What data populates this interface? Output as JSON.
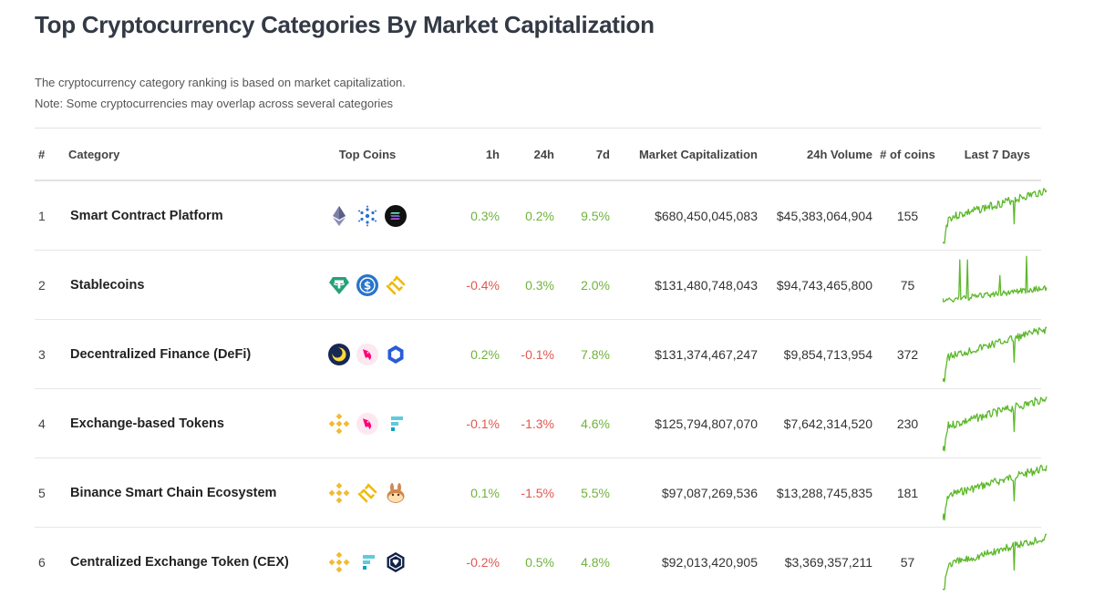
{
  "page": {
    "title": "Top Cryptocurrency Categories By Market Capitalization",
    "description_line1": "The cryptocurrency category ranking is based on market capitalization.",
    "description_line2": "Note: Some cryptocurrencies may overlap across several categories"
  },
  "table": {
    "headers": {
      "rank": "#",
      "category": "Category",
      "top_coins": "Top Coins",
      "h1": "1h",
      "h24": "24h",
      "d7": "7d",
      "market_cap": "Market Capitalization",
      "volume": "24h Volume",
      "coins": "# of coins",
      "last7": "Last 7 Days"
    },
    "rows": [
      {
        "rank": "1",
        "category": "Smart Contract Platform",
        "h1": "0.3%",
        "h24": "0.2%",
        "d7": "9.5%",
        "market_cap": "$680,450,045,083",
        "volume": "$45,383,064,904",
        "coins": "155",
        "top_coins": [
          "ethereum-icon",
          "cardano-icon",
          "solana-icon"
        ]
      },
      {
        "rank": "2",
        "category": "Stablecoins",
        "h1": "-0.4%",
        "h24": "0.3%",
        "d7": "2.0%",
        "market_cap": "$131,480,748,043",
        "volume": "$94,743,465,800",
        "coins": "75",
        "top_coins": [
          "tether-icon",
          "usd-coin-icon",
          "binance-usd-icon"
        ]
      },
      {
        "rank": "3",
        "category": "Decentralized Finance (DeFi)",
        "h1": "0.2%",
        "h24": "-0.1%",
        "d7": "7.8%",
        "market_cap": "$131,374,467,247",
        "volume": "$9,854,713,954",
        "coins": "372",
        "top_coins": [
          "terra-icon",
          "uniswap-icon",
          "chainlink-icon"
        ]
      },
      {
        "rank": "4",
        "category": "Exchange-based Tokens",
        "h1": "-0.1%",
        "h24": "-1.3%",
        "d7": "4.6%",
        "market_cap": "$125,794,807,070",
        "volume": "$7,642,314,520",
        "coins": "230",
        "top_coins": [
          "binance-coin-icon",
          "uniswap-icon",
          "ftx-token-icon"
        ]
      },
      {
        "rank": "5",
        "category": "Binance Smart Chain Ecosystem",
        "h1": "0.1%",
        "h24": "-1.5%",
        "d7": "5.5%",
        "market_cap": "$97,087,269,536",
        "volume": "$13,288,745,835",
        "coins": "181",
        "top_coins": [
          "binance-coin-icon",
          "binance-usd-icon",
          "pancakeswap-icon"
        ]
      },
      {
        "rank": "6",
        "category": "Centralized Exchange Token (CEX)",
        "h1": "-0.2%",
        "h24": "0.5%",
        "d7": "4.8%",
        "market_cap": "$92,013,420,905",
        "volume": "$3,369,357,211",
        "coins": "57",
        "top_coins": [
          "binance-coin-icon",
          "ftx-token-icon",
          "crypto-com-icon"
        ]
      }
    ]
  },
  "colors": {
    "positive": "#6fb33c",
    "negative": "#e0584f",
    "sparkline": "#5cb82a"
  }
}
